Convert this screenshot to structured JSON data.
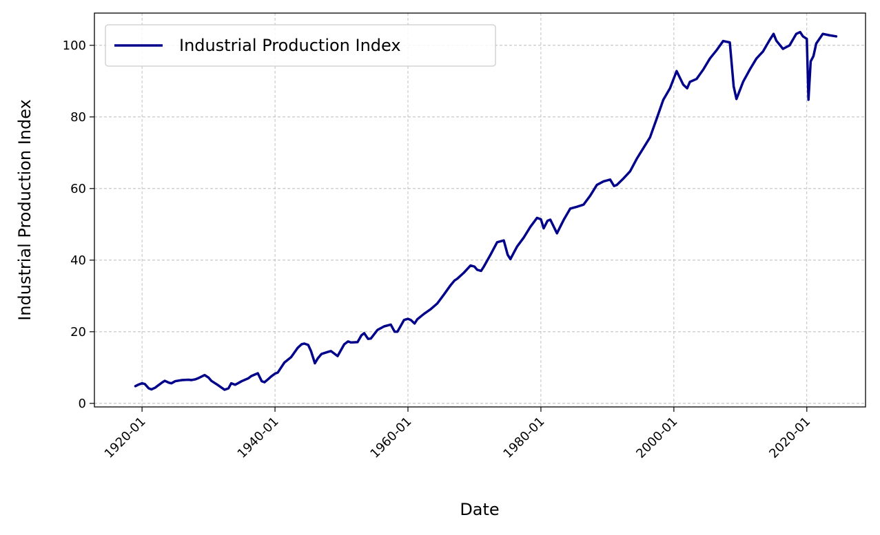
{
  "chart_data": {
    "type": "line",
    "title": "",
    "xlabel": "Date",
    "ylabel": "Industrial Production Index",
    "xlim": [
      "1912-11",
      "2028-11"
    ],
    "ylim": [
      -1,
      109
    ],
    "x_ticks": [
      {
        "value": "1920-01",
        "label": "1920-01"
      },
      {
        "value": "1940-01",
        "label": "1940-01"
      },
      {
        "value": "1960-01",
        "label": "1960-01"
      },
      {
        "value": "1980-01",
        "label": "1980-01"
      },
      {
        "value": "2000-01",
        "label": "2000-01"
      },
      {
        "value": "2020-01",
        "label": "2020-01"
      }
    ],
    "y_ticks": [
      0,
      20,
      40,
      60,
      80,
      100
    ],
    "y_tick_labels": [
      "0",
      "20",
      "40",
      "60",
      "80",
      "100"
    ],
    "grid": true,
    "legend_position": "top-left",
    "series": [
      {
        "name": "Industrial Production Index",
        "color": "#00008b",
        "points": [
          [
            "1919-01",
            4.8
          ],
          [
            "1919-06",
            5.2
          ],
          [
            "1920-01",
            5.6
          ],
          [
            "1920-06",
            5.4
          ],
          [
            "1921-01",
            4.2
          ],
          [
            "1921-06",
            3.9
          ],
          [
            "1922-01",
            4.4
          ],
          [
            "1922-06",
            5.0
          ],
          [
            "1923-01",
            5.8
          ],
          [
            "1923-06",
            6.3
          ],
          [
            "1924-01",
            5.8
          ],
          [
            "1924-06",
            5.6
          ],
          [
            "1925-01",
            6.2
          ],
          [
            "1926-01",
            6.5
          ],
          [
            "1927-01",
            6.6
          ],
          [
            "1927-06",
            6.5
          ],
          [
            "1928-01",
            6.7
          ],
          [
            "1928-06",
            7.0
          ],
          [
            "1929-06",
            7.9
          ],
          [
            "1930-01",
            7.2
          ],
          [
            "1930-06",
            6.3
          ],
          [
            "1931-01",
            5.6
          ],
          [
            "1931-06",
            5.1
          ],
          [
            "1932-06",
            3.8
          ],
          [
            "1933-01",
            4.2
          ],
          [
            "1933-06",
            5.6
          ],
          [
            "1934-01",
            5.2
          ],
          [
            "1934-06",
            5.6
          ],
          [
            "1935-01",
            6.2
          ],
          [
            "1936-01",
            7.0
          ],
          [
            "1936-06",
            7.6
          ],
          [
            "1937-06",
            8.4
          ],
          [
            "1938-01",
            6.2
          ],
          [
            "1938-06",
            5.9
          ],
          [
            "1939-01",
            6.8
          ],
          [
            "1939-06",
            7.5
          ],
          [
            "1940-01",
            8.3
          ],
          [
            "1940-06",
            8.6
          ],
          [
            "1941-06",
            11.4
          ],
          [
            "1942-06",
            12.9
          ],
          [
            "1943-06",
            15.5
          ],
          [
            "1944-01",
            16.5
          ],
          [
            "1944-06",
            16.7
          ],
          [
            "1945-01",
            16.3
          ],
          [
            "1945-06",
            14.6
          ],
          [
            "1946-01",
            11.2
          ],
          [
            "1946-06",
            12.5
          ],
          [
            "1947-01",
            13.8
          ],
          [
            "1948-01",
            14.4
          ],
          [
            "1948-06",
            14.6
          ],
          [
            "1949-06",
            13.2
          ],
          [
            "1950-06",
            16.5
          ],
          [
            "1951-01",
            17.3
          ],
          [
            "1951-06",
            17.0
          ],
          [
            "1952-06",
            17.1
          ],
          [
            "1953-01",
            19.0
          ],
          [
            "1953-06",
            19.6
          ],
          [
            "1954-01",
            18.0
          ],
          [
            "1954-06",
            18.1
          ],
          [
            "1955-06",
            20.5
          ],
          [
            "1956-06",
            21.5
          ],
          [
            "1957-06",
            22.0
          ],
          [
            "1958-01",
            20.0
          ],
          [
            "1958-06",
            20.0
          ],
          [
            "1959-06",
            23.3
          ],
          [
            "1960-01",
            23.6
          ],
          [
            "1960-06",
            23.3
          ],
          [
            "1961-01",
            22.3
          ],
          [
            "1961-06",
            23.5
          ],
          [
            "1962-06",
            25.0
          ],
          [
            "1963-06",
            26.3
          ],
          [
            "1964-06",
            27.9
          ],
          [
            "1965-06",
            30.4
          ],
          [
            "1966-06",
            33.0
          ],
          [
            "1967-01",
            34.3
          ],
          [
            "1967-06",
            34.8
          ],
          [
            "1968-06",
            36.5
          ],
          [
            "1969-06",
            38.5
          ],
          [
            "1970-01",
            38.2
          ],
          [
            "1970-06",
            37.3
          ],
          [
            "1971-01",
            37.0
          ],
          [
            "1971-06",
            38.2
          ],
          [
            "1972-06",
            41.5
          ],
          [
            "1973-06",
            45.0
          ],
          [
            "1974-06",
            45.5
          ],
          [
            "1975-01",
            41.5
          ],
          [
            "1975-06",
            40.3
          ],
          [
            "1976-06",
            43.8
          ],
          [
            "1977-06",
            46.3
          ],
          [
            "1978-06",
            49.3
          ],
          [
            "1979-06",
            51.8
          ],
          [
            "1980-01",
            51.4
          ],
          [
            "1980-06",
            48.9
          ],
          [
            "1981-01",
            51.0
          ],
          [
            "1981-06",
            51.3
          ],
          [
            "1982-06",
            47.5
          ],
          [
            "1983-06",
            51.2
          ],
          [
            "1984-06",
            54.4
          ],
          [
            "1985-06",
            54.9
          ],
          [
            "1986-06",
            55.5
          ],
          [
            "1987-06",
            58.0
          ],
          [
            "1988-06",
            61.0
          ],
          [
            "1989-06",
            62.0
          ],
          [
            "1990-06",
            62.5
          ],
          [
            "1991-01",
            60.7
          ],
          [
            "1991-06",
            61.0
          ],
          [
            "1992-06",
            62.8
          ],
          [
            "1993-06",
            64.8
          ],
          [
            "1994-06",
            68.3
          ],
          [
            "1995-06",
            71.3
          ],
          [
            "1996-06",
            74.3
          ],
          [
            "1997-06",
            79.5
          ],
          [
            "1998-06",
            84.8
          ],
          [
            "1999-06",
            88.0
          ],
          [
            "2000-06",
            92.8
          ],
          [
            "2001-06",
            89.0
          ],
          [
            "2002-01",
            88.0
          ],
          [
            "2002-06",
            89.8
          ],
          [
            "2003-06",
            90.6
          ],
          [
            "2004-06",
            93.2
          ],
          [
            "2005-06",
            96.3
          ],
          [
            "2006-06",
            98.6
          ],
          [
            "2007-06",
            101.2
          ],
          [
            "2008-06",
            100.8
          ],
          [
            "2009-01",
            88.5
          ],
          [
            "2009-06",
            85.0
          ],
          [
            "2010-06",
            89.8
          ],
          [
            "2011-06",
            93.2
          ],
          [
            "2012-06",
            96.3
          ],
          [
            "2013-06",
            98.3
          ],
          [
            "2014-06",
            101.5
          ],
          [
            "2015-01",
            103.2
          ],
          [
            "2015-06",
            101.3
          ],
          [
            "2016-06",
            99.0
          ],
          [
            "2017-06",
            100.0
          ],
          [
            "2018-06",
            103.2
          ],
          [
            "2019-01",
            103.7
          ],
          [
            "2019-06",
            102.5
          ],
          [
            "2020-01",
            101.8
          ],
          [
            "2020-04",
            84.8
          ],
          [
            "2020-08",
            95.5
          ],
          [
            "2021-01",
            97.0
          ],
          [
            "2021-06",
            100.5
          ],
          [
            "2022-06",
            103.2
          ],
          [
            "2023-06",
            102.8
          ],
          [
            "2024-06",
            102.5
          ]
        ]
      }
    ]
  }
}
